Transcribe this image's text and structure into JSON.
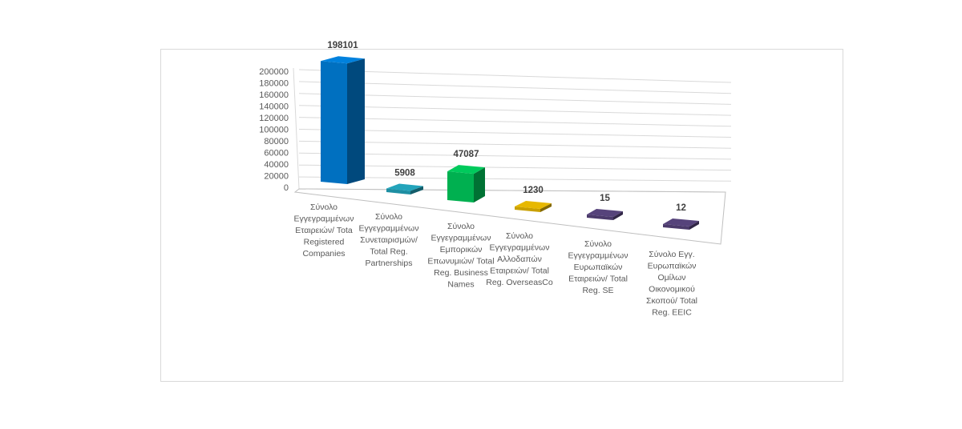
{
  "chart_data": {
    "type": "bar",
    "variant": "3d-column",
    "title": "",
    "xlabel": "",
    "ylabel": "",
    "ylim": [
      0,
      200000
    ],
    "yticks": [
      0,
      20000,
      40000,
      60000,
      80000,
      100000,
      120000,
      140000,
      160000,
      180000,
      200000
    ],
    "grid": true,
    "legend": null,
    "categories": [
      "Σύνολο Εγγεγραμμένων Εταιρειών/ Total Registered Companies",
      "Σύνολο Εγγεγραμμένων Συνεταιρισμών/ Total Reg. Partnerships",
      "Σύνολο Εγγεγραμμένων Εμπορικών Επωνυμιών/ Total Reg. Business Names",
      "Σύνολο Εγγεγραμμένων Αλλοδαπών Εταιρειών/ Total Reg. OverseasCo",
      "Σύνολο Εγγεγραμμένων Ευρωπαϊκών Εταιρειών/ Total Reg. SE",
      "Σύνολο Εγγ. Ευρωπαϊκών Ομίλων Οικονομικού Σκοπού/ Total Reg. EEIC"
    ],
    "category_lines": [
      [
        "Σύνολο",
        "Εγγεγραμμένων",
        "Εταιρειών/ Tota",
        "Registered",
        "Companies"
      ],
      [
        "Σύνολο",
        "Εγγεγραμμένων",
        "Συνεταιρισμών/",
        "Total Reg.",
        "Partnerships"
      ],
      [
        "Σύνολο",
        "Εγγεγραμμένων",
        "Εμπορικών",
        "Επωνυμιών/ Total",
        "Reg. Business",
        "Names"
      ],
      [
        "Σύνολο",
        "Εγγεγραμμένων",
        "Αλλοδαπών",
        "Εταιρειών/ Total",
        "Reg. OverseasCo"
      ],
      [
        "Σύνολο",
        "Εγγεγραμμένων",
        "Ευρωπαϊκών",
        "Εταιρειών/ Total",
        "Reg. SE"
      ],
      [
        "Σύνολο Εγγ.",
        "Ευρωπαϊκών",
        "Ομίλων",
        "Οικονομικού",
        "Σκοπού/ Total",
        "Reg. EEIC"
      ]
    ],
    "values": [
      198101,
      5908,
      47087,
      1230,
      15,
      12
    ],
    "value_labels": [
      "198101",
      "5908",
      "47087",
      "1230",
      "15",
      "12"
    ],
    "colors": [
      "#0070C0",
      "#1E8FA3",
      "#00B050",
      "#C9A000",
      "#4B3A6B",
      "#4B3A6B"
    ]
  }
}
